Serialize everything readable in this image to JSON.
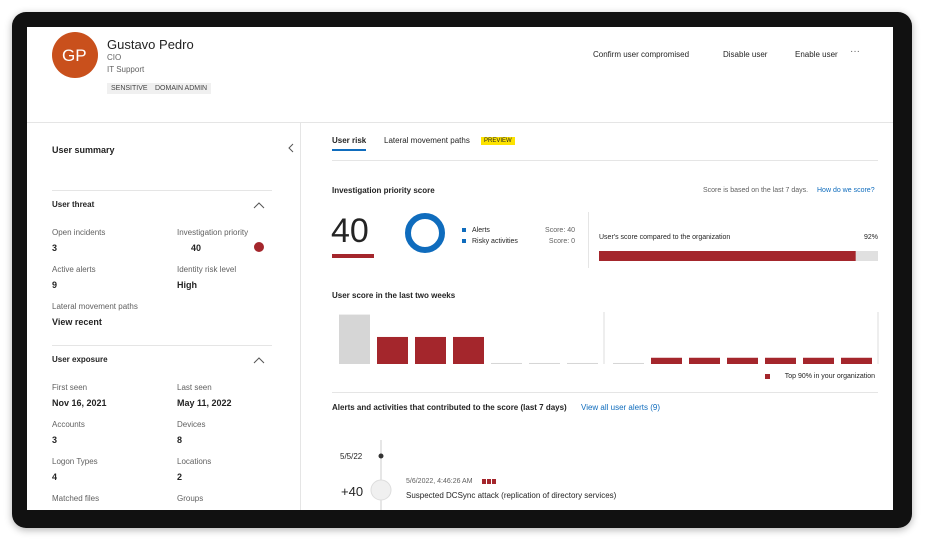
{
  "profile": {
    "initials": "GP",
    "name": "Gustavo Pedro",
    "role": "CIO",
    "department": "IT Support",
    "tags": [
      "SENSITIVE",
      "DOMAIN ADMIN"
    ]
  },
  "actions": [
    "Confirm user compromised",
    "Disable user",
    "Enable user"
  ],
  "summary": {
    "title": "User summary",
    "sections": [
      {
        "title": "User threat",
        "items": [
          {
            "label": "Open incidents",
            "value": "3"
          },
          {
            "label": "Investigation priority",
            "value": "40"
          },
          {
            "label": "Active alerts",
            "value": "9"
          },
          {
            "label": "Identity risk level",
            "value": "High"
          },
          {
            "label": "Lateral movement paths",
            "value": "View recent"
          }
        ]
      },
      {
        "title": "User exposure",
        "items": [
          {
            "label": "First seen",
            "value": "Nov 16, 2021"
          },
          {
            "label": "Last seen",
            "value": "May 11, 2022"
          },
          {
            "label": "Accounts",
            "value": "3"
          },
          {
            "label": "Devices",
            "value": "8"
          },
          {
            "label": "Logon Types",
            "value": "4"
          },
          {
            "label": "Locations",
            "value": "2"
          },
          {
            "label": "Matched files"
          },
          {
            "label": "Groups"
          }
        ]
      }
    ]
  },
  "tabs": [
    "User risk",
    "Lateral movement paths"
  ],
  "badge": "PREVIEW",
  "priority": {
    "title": "Investigation priority score",
    "note": "Score is based on the last 7 days.",
    "link": "How do we score?",
    "score": "40",
    "legend": [
      {
        "name": "Alerts",
        "score": "Score: 40"
      },
      {
        "name": "Risky activities",
        "score": "Score: 0"
      }
    ],
    "compare_label": "User's score compared to the organization",
    "compare": {
      "value": 92,
      "label": "92%"
    }
  },
  "chart_data": {
    "type": "bar",
    "title": "User score in the last two weeks",
    "values": [
      95,
      52,
      52,
      52,
      2,
      2,
      2,
      2,
      12,
      12,
      12,
      12,
      12,
      12
    ],
    "colors": [
      "#d6d6d6",
      "#a4262c",
      "#a4262c",
      "#a4262c",
      "#d6d6d6",
      "#d6d6d6",
      "#d6d6d6",
      "#d6d6d6",
      "#a4262c",
      "#a4262c",
      "#a4262c",
      "#a4262c",
      "#a4262c",
      "#a4262c"
    ],
    "ylim": [
      0,
      100
    ],
    "legend": {
      "name": "Top 90% in your organization",
      "color": "#a4262c"
    }
  },
  "alerts": {
    "title": "Alerts and activities that contributed to the score (last 7 days)",
    "link": "View all user alerts (9)",
    "date": "5/5/22",
    "entry": {
      "score": "+40",
      "time": "5/6/2022, 4:46:26 AM",
      "name": "Suspected DCSync attack (replication of directory services)"
    }
  }
}
